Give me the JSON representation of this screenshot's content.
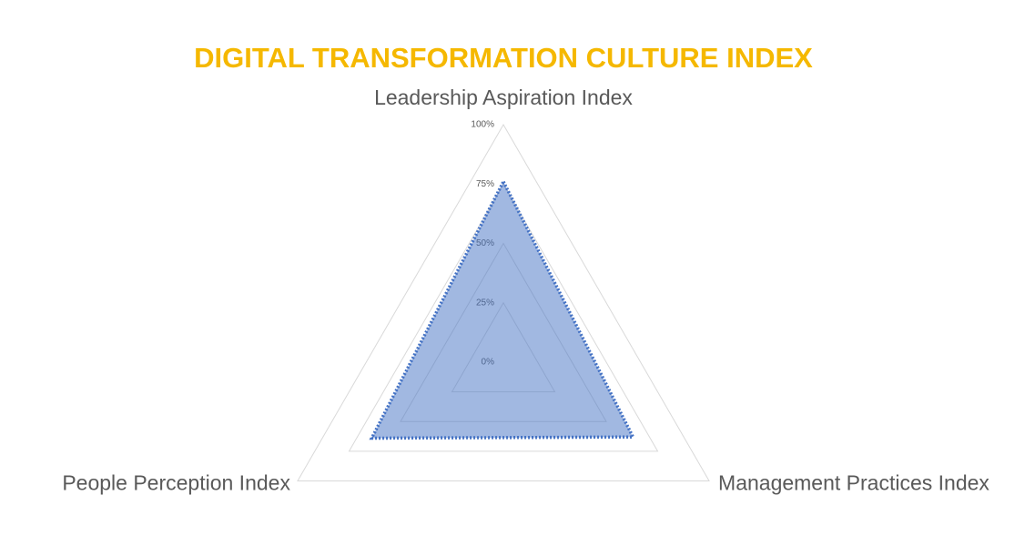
{
  "chart_data": {
    "type": "radar",
    "title": "DIGITAL TRANSFORMATION CULTURE INDEX",
    "categories": [
      "Leadership Aspiration Index",
      "Management Practices Index",
      "People Perception Index"
    ],
    "values": [
      76,
      63,
      64
    ],
    "color": "#4472c4",
    "ylim": [
      0,
      100
    ],
    "yticks": [
      {
        "value": 0,
        "label": "0%"
      },
      {
        "value": 25,
        "label": "25%"
      },
      {
        "value": 50,
        "label": "50%"
      },
      {
        "value": 75,
        "label": "75%"
      },
      {
        "value": 100,
        "label": "100%"
      }
    ],
    "grid": true
  }
}
